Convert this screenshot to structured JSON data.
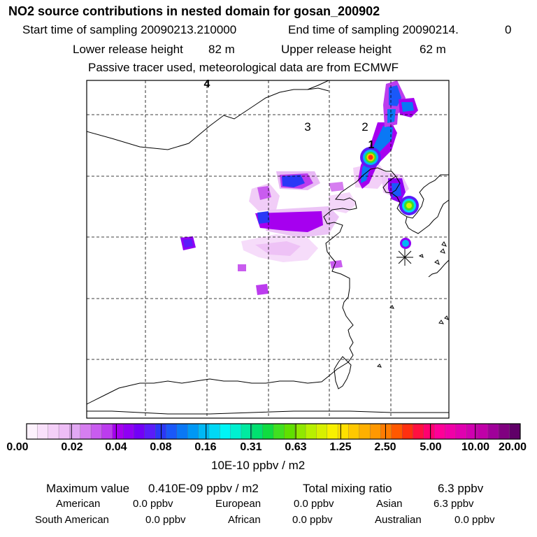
{
  "header": {
    "title": "NO2 source contributions in nested domain for gosan_200902",
    "start_label": "Start time of sampling 20090213.210000",
    "end_label": "End time of sampling 20090214.",
    "end_value": "0",
    "lower_label": "Lower release height",
    "lower_value": "82 m",
    "upper_label": "Upper release height",
    "upper_value": "62 m",
    "note": "Passive tracer used, meteorological data are from ECMWF"
  },
  "map": {
    "markers": [
      "4",
      "3",
      "2",
      "1"
    ],
    "receptor_symbol": "✳"
  },
  "colorbar": {
    "ticks": [
      "0.00",
      "0.02",
      "0.04",
      "0.08",
      "0.16",
      "0.31",
      "0.63",
      "1.25",
      "2.50",
      "5.00",
      "10.00",
      "20.00"
    ],
    "units": "10E-10 ppbv / m2",
    "colors": [
      "#fdf2fd",
      "#f9e0fb",
      "#f4cff8",
      "#eebdf6",
      "#e2a8f3",
      "#d67ef0",
      "#c95cef",
      "#bc3cee",
      "#a600ef",
      "#8f00f4",
      "#7200f7",
      "#5a1cf9",
      "#2a38f7",
      "#1a58f9",
      "#0a78f5",
      "#0098f5",
      "#00b8f5",
      "#00d8f5",
      "#00f5f5",
      "#00f0d0",
      "#00eaa0",
      "#00e070",
      "#10dc40",
      "#40e020",
      "#60e000",
      "#90e800",
      "#b8f000",
      "#d8f000",
      "#f8f000",
      "#ffe000",
      "#ffc800",
      "#ffb000",
      "#ff9800",
      "#ff7c00",
      "#ff5800",
      "#ff3010",
      "#ff1040",
      "#ff0070",
      "#ff0098",
      "#f000a8",
      "#e000b0",
      "#d000b0",
      "#c000a8",
      "#a0009a",
      "#800080",
      "#600068"
    ]
  },
  "summary": {
    "max_label": "Maximum value",
    "max_value": "0.410E-09 ppbv / m2",
    "total_label": "Total mixing ratio",
    "total_value": "6.3 ppbv",
    "rows": [
      [
        {
          "name": "American",
          "value": "0.0 ppbv"
        },
        {
          "name": "European",
          "value": "0.0 ppbv"
        },
        {
          "name": "Asian",
          "value": "6.3 ppbv"
        }
      ],
      [
        {
          "name": "South American",
          "value": "0.0 ppbv"
        },
        {
          "name": "African",
          "value": "0.0 ppbv"
        },
        {
          "name": "Australian",
          "value": "0.0 ppbv"
        }
      ]
    ]
  }
}
